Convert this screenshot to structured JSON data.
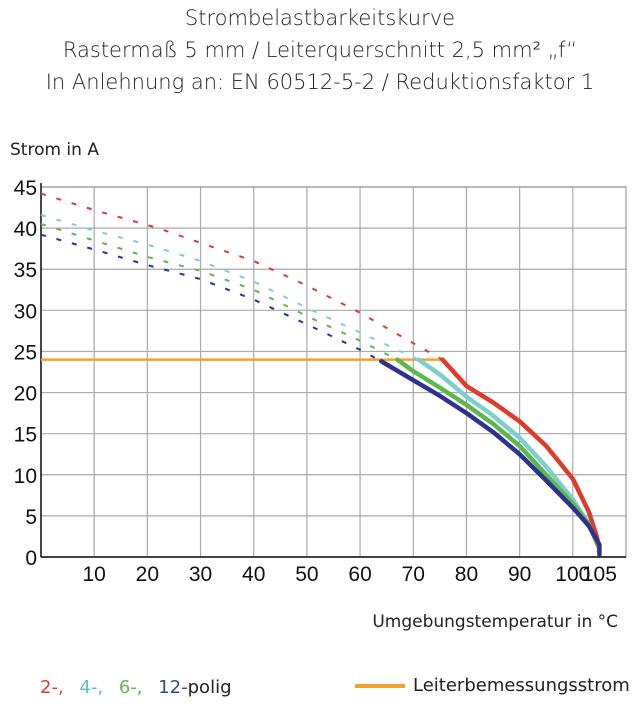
{
  "chart_data": {
    "type": "line",
    "title": "Strombelastbarkeitskurve",
    "subtitle": [
      "Rastermaß 5 mm / Leiterquerschnitt 2,5 mm² „f“",
      "In Anlehnung an: EN 60512-5-2 / Reduktionsfaktor 1"
    ],
    "ylabel": "Strom in A",
    "xlabel": "Umgebungstemperatur in °C",
    "xlim": [
      0,
      110
    ],
    "ylim": [
      0,
      45
    ],
    "xticks": [
      10,
      20,
      30,
      40,
      50,
      60,
      70,
      80,
      90,
      100,
      105
    ],
    "yticks": [
      0,
      5,
      10,
      15,
      20,
      25,
      30,
      35,
      40,
      45
    ],
    "grid": true,
    "series": [
      {
        "name": "2-,",
        "color": "#e03a2a",
        "dashed": [
          [
            0,
            44.2
          ],
          [
            10,
            42.2
          ],
          [
            22,
            40
          ],
          [
            30,
            38.2
          ],
          [
            40,
            36
          ],
          [
            50,
            33
          ],
          [
            60,
            29.7
          ],
          [
            70,
            26
          ],
          [
            75.5,
            24
          ]
        ],
        "solid": [
          [
            75.5,
            24
          ],
          [
            80,
            20.8
          ],
          [
            85,
            18.8
          ],
          [
            90,
            16.5
          ],
          [
            95,
            13.5
          ],
          [
            100,
            9.5
          ],
          [
            103,
            5.5
          ],
          [
            104.5,
            2.5
          ],
          [
            105,
            1
          ]
        ]
      },
      {
        "name": "4-,",
        "color": "#7ccfd0",
        "dashed": [
          [
            0,
            41.6
          ],
          [
            10,
            39.7
          ],
          [
            20,
            38
          ],
          [
            30,
            36
          ],
          [
            40,
            33.5
          ],
          [
            50,
            30.3
          ],
          [
            60,
            27.3
          ],
          [
            71,
            24
          ]
        ],
        "solid": [
          [
            71,
            24
          ],
          [
            75,
            22.2
          ],
          [
            80,
            19.5
          ],
          [
            85,
            17.2
          ],
          [
            90,
            14.5
          ],
          [
            95,
            11
          ],
          [
            100,
            7
          ],
          [
            103,
            4
          ],
          [
            105,
            1
          ]
        ]
      },
      {
        "name": "6-,",
        "color": "#5db84a",
        "dashed": [
          [
            0,
            40.5
          ],
          [
            10,
            38.5
          ],
          [
            20,
            36.5
          ],
          [
            30,
            34.8
          ],
          [
            40,
            32.5
          ],
          [
            50,
            29.3
          ],
          [
            60,
            26.3
          ],
          [
            67,
            24
          ]
        ],
        "solid": [
          [
            67,
            24
          ],
          [
            70,
            22.6
          ],
          [
            75,
            20.6
          ],
          [
            80,
            18.5
          ],
          [
            85,
            16.2
          ],
          [
            90,
            13.5
          ],
          [
            95,
            10
          ],
          [
            100,
            6.5
          ],
          [
            103,
            4
          ],
          [
            105,
            1
          ]
        ]
      },
      {
        "name": "12-",
        "color": "#2e3190",
        "dashed": [
          [
            0,
            39.2
          ],
          [
            10,
            37.4
          ],
          [
            20,
            35.5
          ],
          [
            30,
            33.8
          ],
          [
            40,
            31.3
          ],
          [
            50,
            28.3
          ],
          [
            60,
            25.2
          ],
          [
            64,
            23.8
          ]
        ],
        "solid": [
          [
            64,
            23.8
          ],
          [
            70,
            21.5
          ],
          [
            75,
            19.6
          ],
          [
            80,
            17.5
          ],
          [
            85,
            15.2
          ],
          [
            90,
            12.5
          ],
          [
            95,
            9.3
          ],
          [
            100,
            6
          ],
          [
            103,
            3.8
          ],
          [
            105,
            1.5
          ],
          [
            105,
            0.3
          ]
        ]
      }
    ],
    "reference": {
      "name": "Leiterbemessungsstrom",
      "color": "#f4a030",
      "points": [
        [
          0,
          24
        ],
        [
          75.5,
          24
        ]
      ]
    },
    "legend_suffix": "polig"
  }
}
